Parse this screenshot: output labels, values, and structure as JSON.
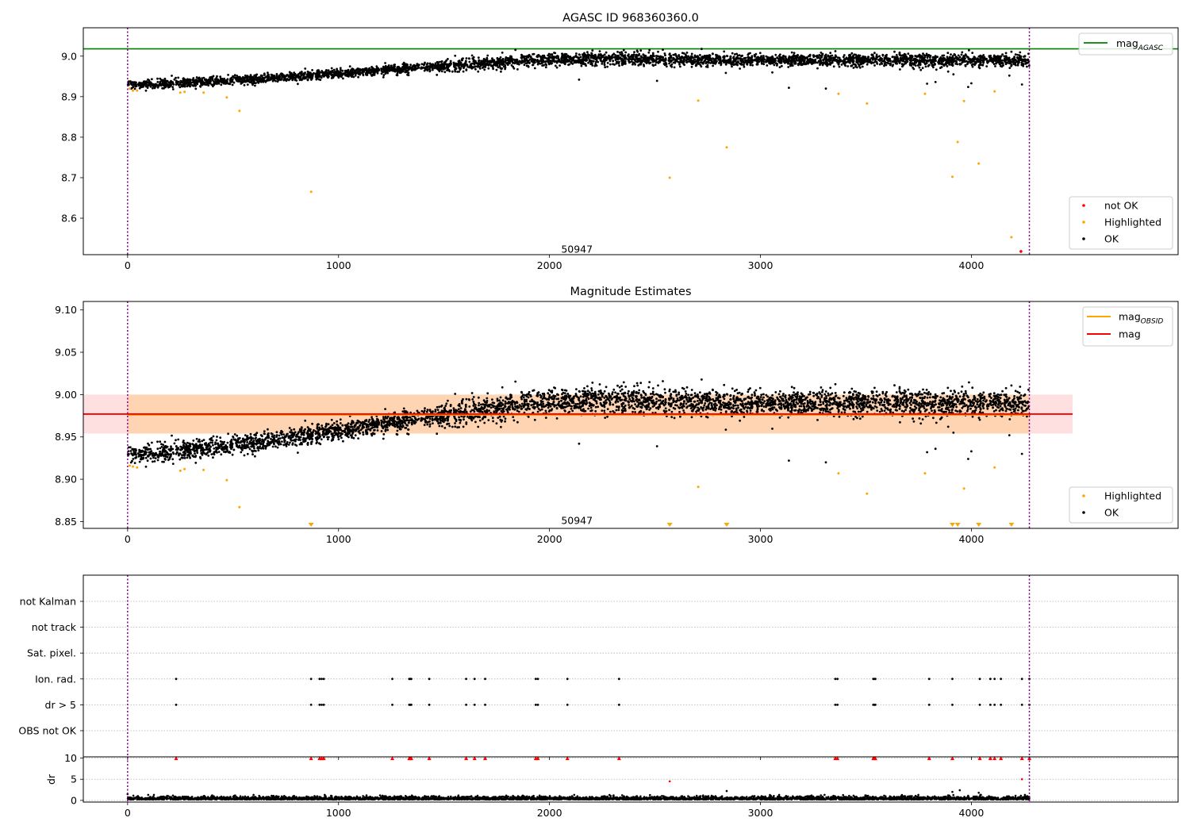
{
  "chart_data": [
    {
      "id": "p1",
      "type": "scatter",
      "title": "AGASC ID 968360360.0",
      "xlim": [
        -210,
        4980
      ],
      "ylim": [
        8.51,
        9.07
      ],
      "xticks": [
        0,
        1000,
        2000,
        3000,
        4000
      ],
      "yticks": [
        8.6,
        8.7,
        8.8,
        8.9,
        9.0
      ],
      "ytick_labels": [
        "8.6",
        "8.7",
        "8.8",
        "8.9",
        "9.0"
      ],
      "vlines": [
        0,
        4275
      ],
      "hline": {
        "label_main": "mag",
        "label_sub": "AGASC",
        "y": 9.018,
        "color": "#008000"
      },
      "obsid_label": {
        "text": "50947",
        "x": 2130,
        "y": 8.515
      },
      "legend_scatter": [
        {
          "label": "not OK",
          "color": "#ff0000"
        },
        {
          "label": "Highlighted",
          "color": "#ffa500"
        },
        {
          "label": "OK",
          "color": "#000000"
        }
      ],
      "trend": {
        "x": [
          0,
          400,
          800,
          1200,
          1600,
          2000,
          2400,
          2800,
          3200,
          3600,
          4000,
          4275
        ],
        "y": [
          8.928,
          8.937,
          8.95,
          8.965,
          8.98,
          8.992,
          8.993,
          8.99,
          8.99,
          8.99,
          8.99,
          8.99
        ]
      },
      "highlighted": {
        "x": [
          10,
          25,
          45,
          250,
          270,
          360,
          470,
          530,
          870,
          2570,
          2705,
          2840,
          3370,
          3505,
          3780,
          3910,
          3935,
          3965,
          4035,
          4110,
          4190
        ],
        "y": [
          8.92,
          8.915,
          8.915,
          8.91,
          8.912,
          8.91,
          8.898,
          8.865,
          8.665,
          8.7,
          8.89,
          8.775,
          8.907,
          8.883,
          8.907,
          8.702,
          8.788,
          8.889,
          8.735,
          8.913,
          8.553
        ]
      },
      "not_ok": {
        "x": [
          4235
        ],
        "y": [
          8.518
        ]
      }
    },
    {
      "id": "p2",
      "type": "scatter",
      "title": "Magnitude Estimates",
      "xlim": [
        -210,
        4980
      ],
      "ylim": [
        8.842,
        9.11
      ],
      "xticks": [
        0,
        1000,
        2000,
        3000,
        4000
      ],
      "yticks": [
        8.85,
        8.9,
        8.95,
        9.0,
        9.05,
        9.1
      ],
      "ytick_labels": [
        "8.85",
        "8.90",
        "8.95",
        "9.00",
        "9.05",
        "9.10"
      ],
      "vlines": [
        0,
        4275
      ],
      "mag_line": {
        "label": "mag",
        "y": 8.977,
        "band": [
          8.954,
          9.0
        ],
        "x_range": [
          -210,
          4480
        ],
        "color": "#ff0000"
      },
      "obsid_line": {
        "label_main": "mag",
        "label_sub": "OBSID",
        "y": 8.976,
        "band": [
          8.954,
          9.0
        ],
        "x_range": [
          0,
          4275
        ],
        "color": "#ffa500"
      },
      "obsid_label": {
        "text": "50947",
        "x": 2130,
        "y": 8.847
      },
      "legend_lines": [
        {
          "label_main": "mag",
          "label_sub": "OBSID",
          "color": "#ffa500"
        },
        {
          "label_main": "mag",
          "label_sub": "",
          "color": "#ff0000"
        }
      ],
      "legend_scatter": [
        {
          "label": "Highlighted",
          "color": "#ffa500"
        },
        {
          "label": "OK",
          "color": "#000000"
        }
      ],
      "highlighted": {
        "x": [
          10,
          25,
          45,
          250,
          270,
          360,
          470,
          530,
          2705,
          3370,
          3505,
          3780,
          3965,
          4110
        ],
        "y": [
          8.916,
          8.915,
          8.914,
          8.91,
          8.912,
          8.911,
          8.899,
          8.867,
          8.891,
          8.907,
          8.883,
          8.907,
          8.889,
          8.914
        ]
      },
      "below_limit": {
        "x": [
          870,
          2570,
          2840,
          3910,
          3935,
          4035,
          4190
        ]
      }
    },
    {
      "id": "p3",
      "type": "scatter",
      "xlim": [
        -210,
        4980
      ],
      "xticks": [
        0,
        1000,
        2000,
        3000,
        4000
      ],
      "vlines": [
        0,
        4275
      ],
      "categories": [
        "not Kalman",
        "not track",
        "Sat. pixel.",
        "Ion. rad.",
        "dr > 5",
        "OBS not OK"
      ],
      "flag_x": [
        230,
        870,
        910,
        920,
        930,
        1255,
        1335,
        1340,
        1345,
        1430,
        1605,
        1645,
        1695,
        1935,
        1945,
        2085,
        2330,
        3355,
        3365,
        3535,
        3540,
        3545,
        3800,
        3910,
        4040,
        4090,
        4110,
        4140,
        4240,
        4275
      ],
      "flag_rows": {
        "Ion. rad.": true,
        "dr > 5": true
      }
    },
    {
      "id": "p4",
      "type": "scatter",
      "ylabel": "dr",
      "xlim": [
        -210,
        4980
      ],
      "ylim": [
        -0.4,
        10.3
      ],
      "xticks": [
        0,
        1000,
        2000,
        3000,
        4000
      ],
      "xtick_labels": [
        "0",
        "1000",
        "2000",
        "3000",
        "4000"
      ],
      "yticks": [
        0,
        5,
        10
      ],
      "ytick_labels": [
        "0",
        "5",
        "10"
      ],
      "vlines": [
        0,
        4275
      ],
      "clipped_value": 10,
      "extra_red": {
        "x": [
          2570,
          4240
        ],
        "y": [
          4.5,
          5.0
        ]
      },
      "outliers": {
        "x": [
          0,
          2840,
          3910,
          3945,
          4035
        ],
        "y": [
          1.5,
          2.2,
          2.0,
          2.4,
          1.8
        ]
      }
    }
  ]
}
